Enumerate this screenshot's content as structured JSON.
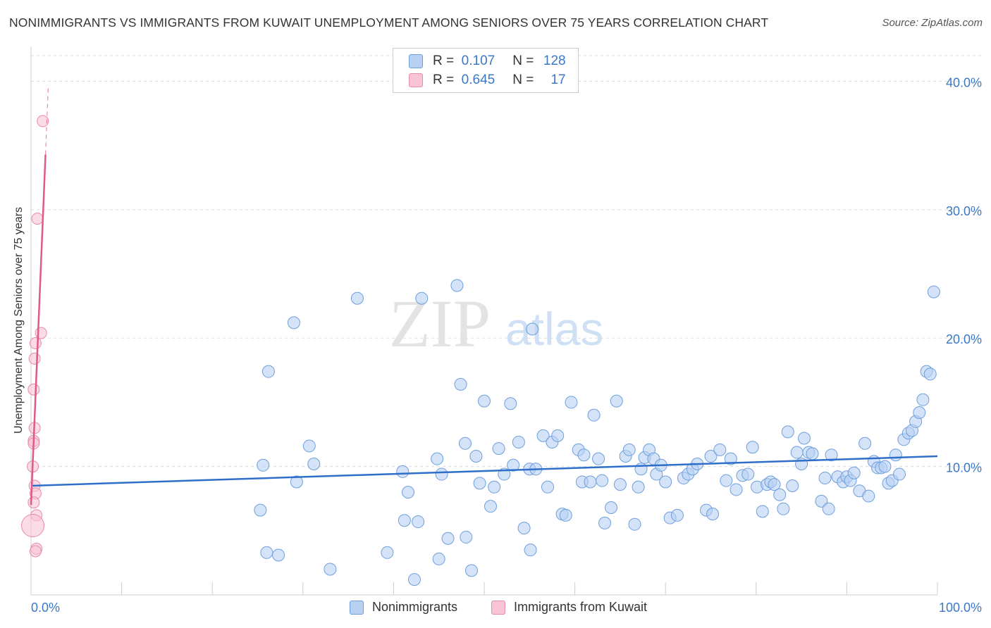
{
  "title": "NONIMMIGRANTS VS IMMIGRANTS FROM KUWAIT UNEMPLOYMENT AMONG SENIORS OVER 75 YEARS CORRELATION CHART",
  "source": "Source: ZipAtlas.com",
  "watermark": {
    "zip": "ZIP",
    "atlas": "atlas"
  },
  "legend": {
    "rows": [
      {
        "r_label": "R =",
        "r_value": "0.107",
        "n_label": "N =",
        "n_value": "128"
      },
      {
        "r_label": "R =",
        "r_value": "0.645",
        "n_label": "N =",
        "n_value": "17"
      }
    ]
  },
  "colors": {
    "blue_fill": "#b8d1f3",
    "blue_stroke": "#6e9fdc",
    "blue_line": "#2f6fca",
    "pink_fill": "#f8c3d4",
    "pink_stroke": "#e88aa9",
    "pink_line": "#e05a87",
    "grid": "#dddddd",
    "axis_text": "#3a78c6"
  },
  "chart_data": {
    "type": "scatter",
    "title": "NONIMMIGRANTS VS IMMIGRANTS FROM KUWAIT UNEMPLOYMENT AMONG SENIORS OVER 75 YEARS CORRELATION CHART",
    "xlabel": "",
    "ylabel": "Unemployment Among Seniors over 75 years",
    "xlim": [
      0,
      100
    ],
    "ylim": [
      0,
      42
    ],
    "x_tick_labels": [
      "0.0%",
      "100.0%"
    ],
    "y_ticks": [
      10,
      20,
      30,
      40
    ],
    "y_tick_labels": [
      "10.0%",
      "20.0%",
      "30.0%",
      "40.0%"
    ],
    "legend_position": "top-center",
    "series": [
      {
        "name": "Nonimmigrants",
        "r": 0.107,
        "n": 128,
        "trend": {
          "x": [
            0,
            100
          ],
          "y": [
            8.5,
            10.8
          ]
        },
        "points": [
          [
            25.3,
            6.6
          ],
          [
            25.6,
            10.1
          ],
          [
            26.0,
            3.3
          ],
          [
            26.2,
            17.4
          ],
          [
            27.3,
            3.1
          ],
          [
            29.0,
            21.2
          ],
          [
            29.3,
            8.8
          ],
          [
            30.7,
            11.6
          ],
          [
            31.2,
            10.2
          ],
          [
            33.0,
            2.0
          ],
          [
            36.0,
            23.1
          ],
          [
            39.3,
            3.3
          ],
          [
            41.0,
            9.6
          ],
          [
            41.2,
            5.8
          ],
          [
            41.6,
            8.0
          ],
          [
            42.3,
            1.2
          ],
          [
            42.7,
            5.7
          ],
          [
            43.1,
            23.1
          ],
          [
            44.8,
            10.6
          ],
          [
            45.0,
            2.8
          ],
          [
            45.3,
            9.4
          ],
          [
            46.0,
            4.4
          ],
          [
            47.0,
            24.1
          ],
          [
            47.4,
            16.4
          ],
          [
            47.9,
            11.8
          ],
          [
            48.0,
            4.5
          ],
          [
            48.6,
            1.9
          ],
          [
            49.1,
            10.8
          ],
          [
            49.5,
            8.7
          ],
          [
            50.0,
            15.1
          ],
          [
            50.7,
            6.9
          ],
          [
            51.1,
            8.4
          ],
          [
            51.6,
            11.4
          ],
          [
            52.2,
            9.4
          ],
          [
            52.9,
            14.9
          ],
          [
            53.2,
            10.1
          ],
          [
            53.8,
            11.9
          ],
          [
            54.4,
            5.2
          ],
          [
            55.0,
            9.8
          ],
          [
            55.1,
            3.5
          ],
          [
            55.3,
            20.7
          ],
          [
            55.7,
            9.8
          ],
          [
            56.5,
            12.4
          ],
          [
            57.0,
            8.4
          ],
          [
            57.5,
            11.9
          ],
          [
            58.1,
            12.4
          ],
          [
            58.6,
            6.3
          ],
          [
            59.0,
            6.2
          ],
          [
            59.6,
            15.0
          ],
          [
            60.4,
            11.3
          ],
          [
            60.8,
            8.8
          ],
          [
            61.0,
            10.9
          ],
          [
            61.7,
            8.8
          ],
          [
            62.1,
            14.0
          ],
          [
            62.6,
            10.6
          ],
          [
            63.0,
            8.9
          ],
          [
            63.3,
            5.6
          ],
          [
            64.0,
            6.8
          ],
          [
            64.6,
            15.1
          ],
          [
            65.0,
            8.6
          ],
          [
            65.6,
            10.8
          ],
          [
            66.0,
            11.3
          ],
          [
            66.6,
            5.5
          ],
          [
            67.0,
            8.4
          ],
          [
            67.3,
            9.8
          ],
          [
            67.7,
            10.7
          ],
          [
            68.2,
            11.3
          ],
          [
            68.7,
            10.6
          ],
          [
            69.0,
            9.4
          ],
          [
            69.5,
            10.1
          ],
          [
            70.0,
            8.8
          ],
          [
            70.5,
            6.0
          ],
          [
            71.3,
            6.2
          ],
          [
            72.0,
            9.1
          ],
          [
            72.5,
            9.4
          ],
          [
            73.0,
            9.8
          ],
          [
            73.5,
            10.2
          ],
          [
            74.5,
            6.6
          ],
          [
            75.0,
            10.8
          ],
          [
            75.2,
            6.3
          ],
          [
            76.0,
            11.3
          ],
          [
            76.7,
            8.9
          ],
          [
            77.2,
            10.6
          ],
          [
            77.8,
            8.2
          ],
          [
            78.5,
            9.3
          ],
          [
            79.1,
            9.4
          ],
          [
            79.6,
            11.5
          ],
          [
            80.1,
            8.4
          ],
          [
            80.7,
            6.5
          ],
          [
            81.2,
            8.6
          ],
          [
            81.6,
            8.8
          ],
          [
            82.0,
            8.6
          ],
          [
            82.6,
            7.8
          ],
          [
            83.0,
            6.7
          ],
          [
            83.5,
            12.7
          ],
          [
            84.0,
            8.5
          ],
          [
            84.5,
            11.1
          ],
          [
            85.0,
            10.2
          ],
          [
            85.3,
            12.2
          ],
          [
            85.8,
            11.1
          ],
          [
            86.2,
            11.0
          ],
          [
            87.2,
            7.3
          ],
          [
            87.6,
            9.1
          ],
          [
            88.0,
            6.7
          ],
          [
            88.3,
            10.9
          ],
          [
            89.0,
            9.2
          ],
          [
            89.6,
            8.8
          ],
          [
            90.0,
            9.2
          ],
          [
            90.4,
            8.9
          ],
          [
            90.8,
            9.5
          ],
          [
            91.4,
            8.1
          ],
          [
            92.0,
            11.8
          ],
          [
            92.4,
            7.7
          ],
          [
            93.0,
            10.4
          ],
          [
            93.4,
            9.9
          ],
          [
            93.8,
            9.9
          ],
          [
            94.2,
            10.0
          ],
          [
            94.6,
            8.7
          ],
          [
            95.0,
            8.9
          ],
          [
            95.4,
            10.9
          ],
          [
            95.8,
            9.4
          ],
          [
            96.3,
            12.1
          ],
          [
            96.8,
            12.6
          ],
          [
            97.2,
            12.8
          ],
          [
            97.6,
            13.5
          ],
          [
            98.0,
            14.2
          ],
          [
            98.4,
            15.2
          ],
          [
            98.8,
            17.4
          ],
          [
            99.2,
            17.2
          ],
          [
            99.6,
            23.6
          ]
        ]
      },
      {
        "name": "Immigrants from Kuwait",
        "r": 0.645,
        "n": 17,
        "trend": {
          "x": [
            0,
            1.6
          ],
          "y": [
            7.0,
            34.3
          ],
          "dashed_to": [
            1.9,
            39.5
          ]
        },
        "points": [
          [
            1.3,
            36.9
          ],
          [
            0.7,
            29.3
          ],
          [
            1.1,
            20.4
          ],
          [
            0.5,
            19.6
          ],
          [
            0.4,
            18.4
          ],
          [
            0.3,
            16.0
          ],
          [
            0.4,
            13.0
          ],
          [
            0.3,
            12.0
          ],
          [
            0.3,
            11.8
          ],
          [
            0.2,
            10.0
          ],
          [
            0.4,
            8.5
          ],
          [
            0.5,
            7.9
          ],
          [
            0.3,
            7.2
          ],
          [
            0.6,
            6.2
          ],
          [
            0.2,
            5.4
          ],
          [
            0.6,
            3.6
          ],
          [
            0.5,
            3.4
          ]
        ]
      }
    ]
  },
  "bottom_legend": [
    {
      "label": "Nonimmigrants"
    },
    {
      "label": "Immigrants from Kuwait"
    }
  ]
}
